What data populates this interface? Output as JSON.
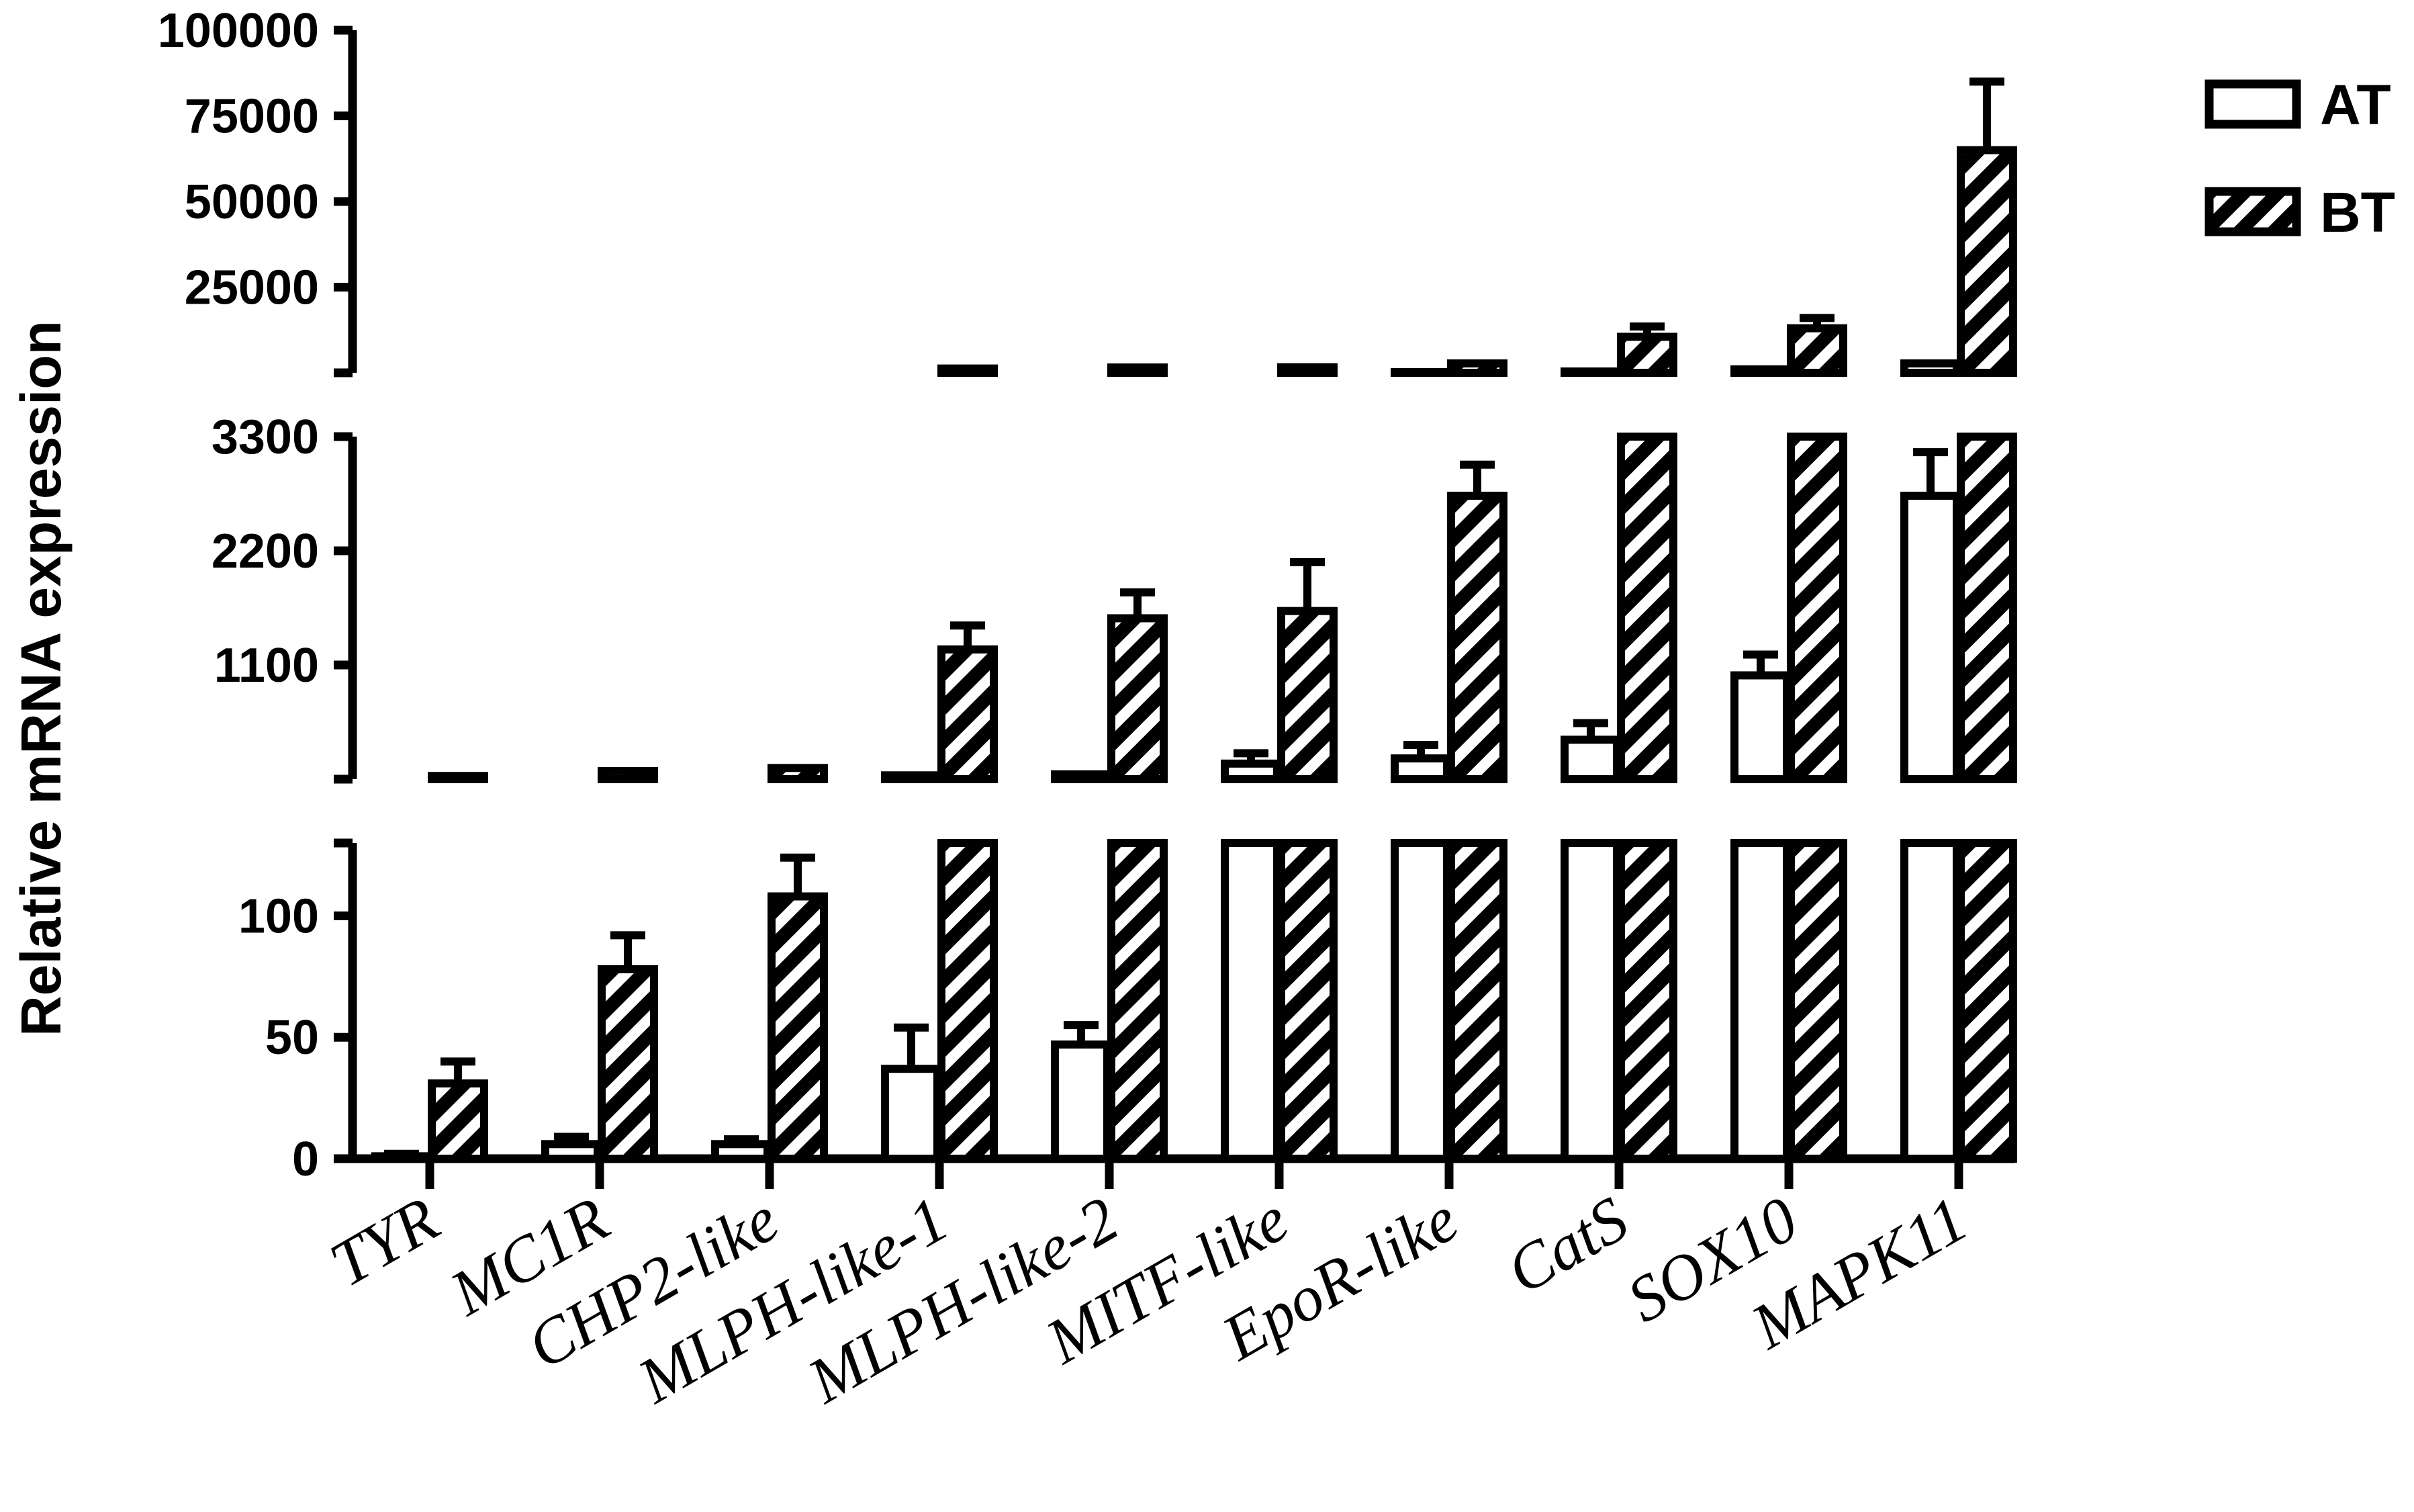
{
  "chart_data": {
    "type": "bar",
    "ylabel": "Relative mRNA expression",
    "xlabel": "",
    "title": "",
    "categories": [
      "TYR",
      "MC1R",
      "CHP2-like",
      "MLPH-like-1",
      "MLPH-like-2",
      "MITF-like",
      "EpoR-like",
      "CatS",
      "SOX10",
      "MAPK11"
    ],
    "series": [
      {
        "name": "AT",
        "pattern": "open",
        "values": [
          1,
          6,
          6,
          37,
          47,
          150,
          200,
          380,
          1000,
          2730
        ],
        "errors": [
          1,
          3,
          2,
          17,
          8,
          100,
          130,
          160,
          200,
          420
        ]
      },
      {
        "name": "BT",
        "pattern": "hatched",
        "values": [
          31,
          78,
          108,
          1250,
          1550,
          1620,
          2730,
          10500,
          13000,
          65000
        ],
        "errors": [
          9,
          14,
          16,
          230,
          250,
          470,
          300,
          3000,
          3000,
          20000
        ]
      }
    ],
    "y_segments": [
      {
        "range": [
          0,
          130
        ],
        "ticks": [
          0,
          50,
          100
        ]
      },
      {
        "range": [
          0,
          3300
        ],
        "ticks": [
          1100,
          2200,
          3300
        ]
      },
      {
        "range": [
          0,
          100000
        ],
        "ticks": [
          25000,
          50000,
          75000,
          100000
        ]
      }
    ],
    "axis_break": true,
    "legend_position": "top-right",
    "grid": false,
    "colors": {
      "bars": "#000000",
      "fill_open": "#ffffff"
    }
  }
}
